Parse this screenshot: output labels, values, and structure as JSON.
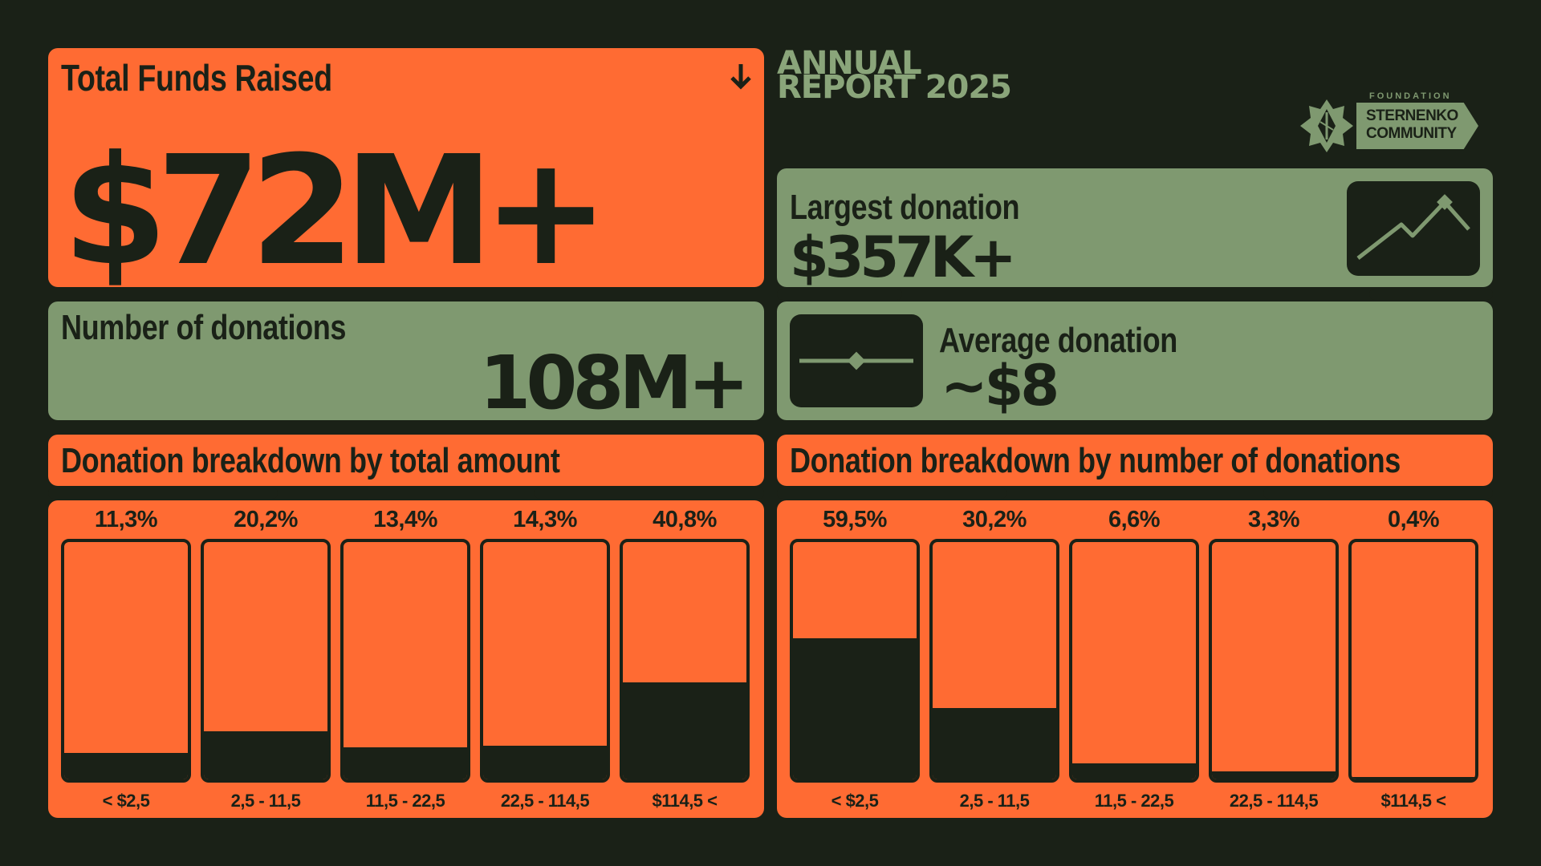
{
  "header": {
    "line1": "ANNUAL",
    "line2": "REPORT 2025"
  },
  "logo": {
    "small": "FOUNDATION",
    "line1": "STERNENKO",
    "line2": "COMMUNITY"
  },
  "total": {
    "label": "Total Funds Raised",
    "value": "$72M+",
    "icon": "arrow-down-icon"
  },
  "largest": {
    "label": "Largest donation",
    "value": "$357K+",
    "icon": "trend-up-icon"
  },
  "count": {
    "label": "Number of donations",
    "value": "108M+"
  },
  "average": {
    "label": "Average donation",
    "value": "~$8",
    "icon": "slider-icon"
  },
  "colors": {
    "background": "#1a2117",
    "orange": "#ff6b33",
    "green": "#7f9970"
  },
  "chart_data": [
    {
      "type": "bar",
      "title": "Donation breakdown by total amount",
      "categories": [
        "< $2,5",
        "2,5 - 11,5",
        "11,5 - 22,5",
        "22,5 - 114,5",
        "$114,5 <"
      ],
      "values": [
        11.3,
        20.2,
        13.4,
        14.3,
        40.8
      ],
      "labels": [
        "11,3%",
        "20,2%",
        "13,4%",
        "14,3%",
        "40,8%"
      ],
      "ylim": [
        0,
        100
      ]
    },
    {
      "type": "bar",
      "title": "Donation breakdown by number of donations",
      "categories": [
        "< $2,5",
        "2,5 - 11,5",
        "11,5 - 22,5",
        "22,5 - 114,5",
        "$114,5 <"
      ],
      "values": [
        59.5,
        30.2,
        6.6,
        3.3,
        0.4
      ],
      "labels": [
        "59,5%",
        "30,2%",
        "6,6%",
        "3,3%",
        "0,4%"
      ],
      "ylim": [
        0,
        100
      ]
    }
  ]
}
